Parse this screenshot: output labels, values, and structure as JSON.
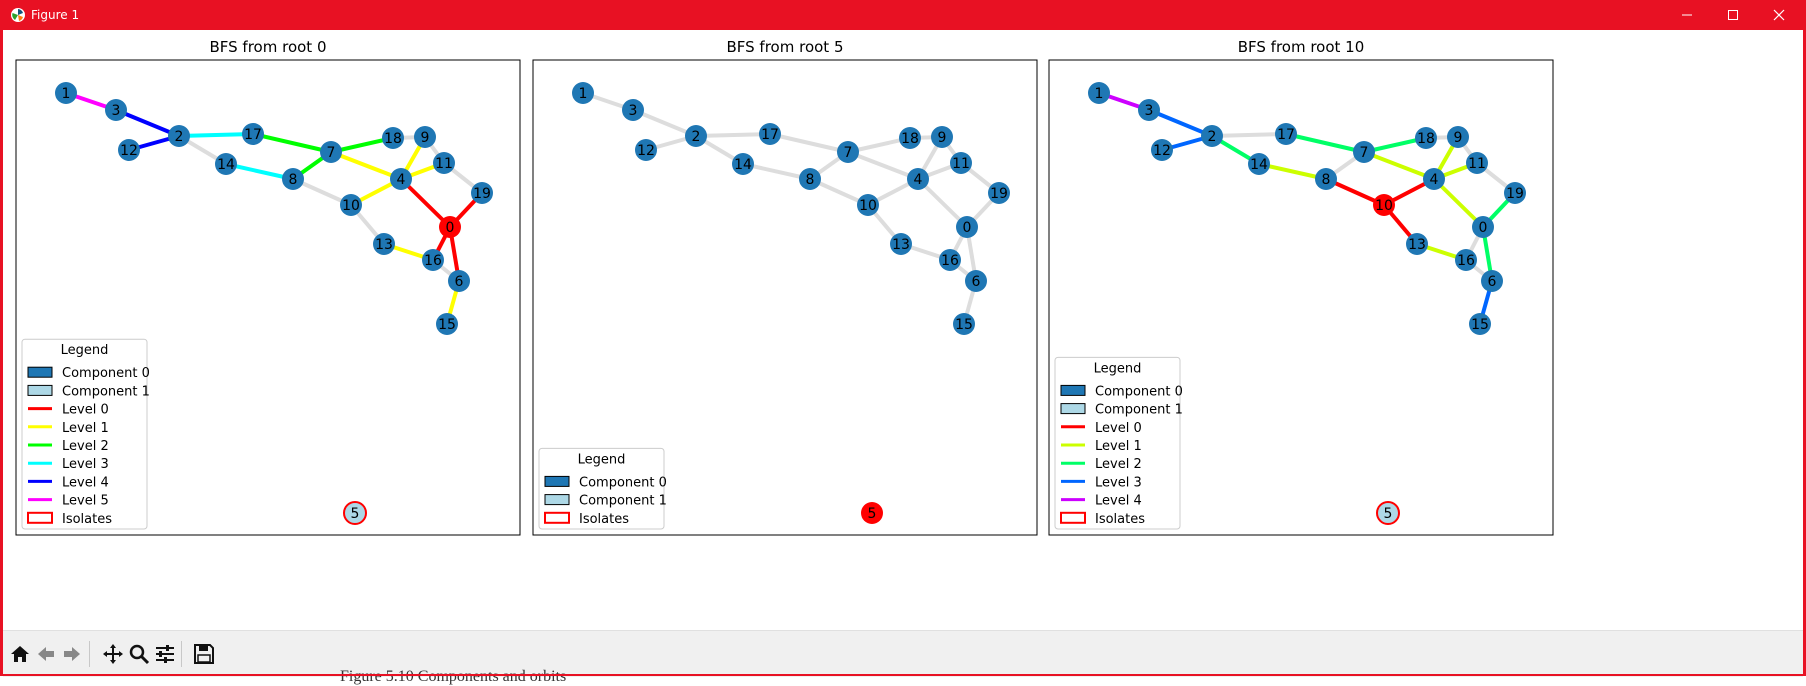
{
  "window": {
    "title": "Figure 1"
  },
  "below_text": "Figure 5.10 Components and orbits",
  "toolbar": {
    "tools": [
      {
        "name": "home-button",
        "icon": "home-icon"
      },
      {
        "name": "back-button",
        "icon": "arrow-left-icon"
      },
      {
        "name": "forward-button",
        "icon": "arrow-right-icon"
      },
      {
        "name": "pan-button",
        "icon": "move-icon"
      },
      {
        "name": "zoom-button",
        "icon": "magnifier-icon"
      },
      {
        "name": "configure-subplots-button",
        "icon": "sliders-icon"
      },
      {
        "name": "save-button",
        "icon": "floppy-disk-icon"
      }
    ]
  },
  "colors": {
    "node": "#1f77b4",
    "component1": "#add8e6",
    "root": "#ff0000",
    "edge": "#dddddd",
    "titlebar": "#e81123"
  },
  "panels": [
    {
      "title": "BFS from root 0",
      "root": "0",
      "isolate": {
        "label": "5",
        "fill": "#add8e6"
      },
      "legend": {
        "title": "Legend",
        "items": [
          {
            "label": "Component 0",
            "type": "patch",
            "color": "#1f77b4"
          },
          {
            "label": "Component 1",
            "type": "patch",
            "color": "#add8e6"
          },
          {
            "label": "Level 0",
            "type": "line",
            "color": "#ff0000"
          },
          {
            "label": "Level 1",
            "type": "line",
            "color": "#ffff00"
          },
          {
            "label": "Level 2",
            "type": "line",
            "color": "#00ff00"
          },
          {
            "label": "Level 3",
            "type": "line",
            "color": "#00ffff"
          },
          {
            "label": "Level 4",
            "type": "line",
            "color": "#0000ff"
          },
          {
            "label": "Level 5",
            "type": "line",
            "color": "#ff00ff"
          },
          {
            "label": "Isolates",
            "type": "outline",
            "color": "#ff0000"
          }
        ]
      },
      "edge_colors": {
        "0-4": "#ff0000",
        "0-16": "#ff0000",
        "0-6": "#ff0000",
        "0-19": "#ff0000",
        "4-10": "#ffff00",
        "4-11": "#ffff00",
        "4-9": "#ffff00",
        "4-7": "#ffff00",
        "16-13": "#ffff00",
        "6-15": "#ffff00",
        "7-17": "#00ff00",
        "7-18": "#00ff00",
        "7-8": "#00ff00",
        "17-2": "#00ffff",
        "8-14": "#00ffff",
        "2-3": "#0000ff",
        "2-12": "#0000ff",
        "3-1": "#ff00ff"
      }
    },
    {
      "title": "BFS from root 5",
      "root": "5",
      "isolate": {
        "label": "5",
        "fill": "#ff0000"
      },
      "legend": {
        "title": "Legend",
        "items": [
          {
            "label": "Component 0",
            "type": "patch",
            "color": "#1f77b4"
          },
          {
            "label": "Component 1",
            "type": "patch",
            "color": "#add8e6"
          },
          {
            "label": "Isolates",
            "type": "outline",
            "color": "#ff0000"
          }
        ]
      },
      "edge_colors": {}
    },
    {
      "title": "BFS from root 10",
      "root": "10",
      "isolate": {
        "label": "5",
        "fill": "#add8e6"
      },
      "legend": {
        "title": "Legend",
        "items": [
          {
            "label": "Component 0",
            "type": "patch",
            "color": "#1f77b4"
          },
          {
            "label": "Component 1",
            "type": "patch",
            "color": "#add8e6"
          },
          {
            "label": "Level 0",
            "type": "line",
            "color": "#ff0000"
          },
          {
            "label": "Level 1",
            "type": "line",
            "color": "#ccff00"
          },
          {
            "label": "Level 2",
            "type": "line",
            "color": "#00ff66"
          },
          {
            "label": "Level 3",
            "type": "line",
            "color": "#0066ff"
          },
          {
            "label": "Level 4",
            "type": "line",
            "color": "#cc00ff"
          },
          {
            "label": "Isolates",
            "type": "outline",
            "color": "#ff0000"
          }
        ]
      },
      "edge_colors": {
        "10-8": "#ff0000",
        "10-4": "#ff0000",
        "10-13": "#ff0000",
        "8-14": "#ccff00",
        "4-9": "#ccff00",
        "4-11": "#ccff00",
        "4-0": "#ccff00",
        "4-7": "#ccff00",
        "13-16": "#ccff00",
        "14-2": "#00ff66",
        "7-17": "#00ff66",
        "7-18": "#00ff66",
        "0-19": "#00ff66",
        "0-6": "#00ff66",
        "2-3": "#0066ff",
        "2-12": "#0066ff",
        "6-15": "#0066ff",
        "3-1": "#cc00ff"
      }
    }
  ],
  "graph": {
    "nodes": [
      "0",
      "1",
      "2",
      "3",
      "4",
      "6",
      "7",
      "8",
      "9",
      "10",
      "11",
      "12",
      "13",
      "14",
      "15",
      "16",
      "17",
      "18",
      "19"
    ],
    "edges": [
      [
        "1",
        "3"
      ],
      [
        "3",
        "2"
      ],
      [
        "2",
        "12"
      ],
      [
        "2",
        "17"
      ],
      [
        "2",
        "14"
      ],
      [
        "17",
        "7"
      ],
      [
        "14",
        "8"
      ],
      [
        "8",
        "7"
      ],
      [
        "8",
        "10"
      ],
      [
        "7",
        "18"
      ],
      [
        "7",
        "4"
      ],
      [
        "18",
        "9"
      ],
      [
        "9",
        "4"
      ],
      [
        "9",
        "11"
      ],
      [
        "11",
        "4"
      ],
      [
        "11",
        "19"
      ],
      [
        "4",
        "10"
      ],
      [
        "4",
        "0"
      ],
      [
        "19",
        "0"
      ],
      [
        "10",
        "13"
      ],
      [
        "13",
        "16"
      ],
      [
        "0",
        "16"
      ],
      [
        "0",
        "6"
      ],
      [
        "16",
        "6"
      ],
      [
        "6",
        "15"
      ]
    ]
  }
}
